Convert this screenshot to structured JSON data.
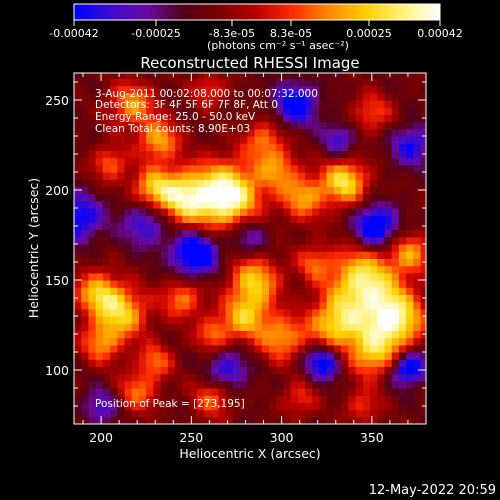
{
  "timestamp": "12-May-2022 20:59",
  "colorbar": {
    "ticks": [
      "-0.00042",
      "-0.00025",
      "-8.3e-05",
      "8.3e-05",
      "0.00025",
      "0.00042"
    ],
    "units": "(photons cm⁻² s⁻¹ asec⁻²)",
    "range": [
      -0.00042,
      0.00042
    ],
    "stops": [
      "#0000ff",
      "#3b0bd0",
      "#6a0aa0",
      "#520018",
      "#7a0000",
      "#bb0000",
      "#ff2d00",
      "#ff8c00",
      "#ffd000",
      "#fff27a",
      "#ffffff"
    ]
  },
  "chart_data": {
    "type": "heatmap",
    "title": "Reconstructed RHESSI Image",
    "xlabel": "Heliocentric X (arcsec)",
    "ylabel": "Heliocentric Y (arcsec)",
    "xlim": [
      185,
      380
    ],
    "ylim": [
      70,
      265
    ],
    "xticks": [
      200,
      250,
      300,
      350
    ],
    "yticks": [
      100,
      150,
      200,
      250
    ],
    "annotations": [
      "3-Aug-2011 00:02:08.000 to 00:07:32.000",
      "Detectors: 3F 4F 5F 6F 7F 8F, Att 0",
      "Energy Range: 25.0 - 50.0 keV",
      "Clean     Total counts: 8.90E+03"
    ],
    "peak_label": "Position of Peak = [273,195]",
    "peak": [
      273,
      195
    ],
    "blobs": [
      {
        "x": 270,
        "y": 197,
        "r": 13,
        "v": 1.0
      },
      {
        "x": 245,
        "y": 196,
        "r": 11,
        "v": 0.75
      },
      {
        "x": 228,
        "y": 201,
        "r": 8,
        "v": 0.55
      },
      {
        "x": 335,
        "y": 205,
        "r": 9,
        "v": 0.75
      },
      {
        "x": 312,
        "y": 196,
        "r": 9,
        "v": 0.55
      },
      {
        "x": 290,
        "y": 228,
        "r": 8,
        "v": 0.45
      },
      {
        "x": 298,
        "y": 212,
        "r": 8,
        "v": 0.45
      },
      {
        "x": 217,
        "y": 248,
        "r": 9,
        "v": 0.55
      },
      {
        "x": 232,
        "y": 228,
        "r": 8,
        "v": 0.6
      },
      {
        "x": 205,
        "y": 215,
        "r": 7,
        "v": 0.45
      },
      {
        "x": 260,
        "y": 256,
        "r": 7,
        "v": 0.35
      },
      {
        "x": 350,
        "y": 243,
        "r": 8,
        "v": 0.4
      },
      {
        "x": 285,
        "y": 150,
        "r": 10,
        "v": 0.65
      },
      {
        "x": 280,
        "y": 130,
        "r": 9,
        "v": 0.6
      },
      {
        "x": 300,
        "y": 118,
        "r": 9,
        "v": 0.55
      },
      {
        "x": 345,
        "y": 150,
        "r": 13,
        "v": 0.8
      },
      {
        "x": 362,
        "y": 128,
        "r": 12,
        "v": 0.9
      },
      {
        "x": 330,
        "y": 125,
        "r": 11,
        "v": 0.7
      },
      {
        "x": 350,
        "y": 108,
        "r": 9,
        "v": 0.55
      },
      {
        "x": 372,
        "y": 165,
        "r": 8,
        "v": 0.5
      },
      {
        "x": 198,
        "y": 143,
        "r": 9,
        "v": 0.6
      },
      {
        "x": 212,
        "y": 132,
        "r": 10,
        "v": 0.65
      },
      {
        "x": 200,
        "y": 115,
        "r": 8,
        "v": 0.5
      },
      {
        "x": 245,
        "y": 140,
        "r": 8,
        "v": 0.5
      },
      {
        "x": 262,
        "y": 120,
        "r": 7,
        "v": 0.45
      },
      {
        "x": 230,
        "y": 105,
        "r": 7,
        "v": 0.45
      },
      {
        "x": 318,
        "y": 160,
        "r": 7,
        "v": 0.4
      },
      {
        "x": 220,
        "y": 88,
        "r": 8,
        "v": 0.45
      },
      {
        "x": 262,
        "y": 85,
        "r": 8,
        "v": 0.45
      },
      {
        "x": 310,
        "y": 84,
        "r": 7,
        "v": 0.35
      },
      {
        "x": 345,
        "y": 80,
        "r": 7,
        "v": 0.35
      },
      {
        "x": 375,
        "y": 95,
        "r": 6,
        "v": 0.3
      },
      {
        "x": 252,
        "y": 165,
        "r": 9,
        "v": -0.8
      },
      {
        "x": 352,
        "y": 180,
        "r": 8,
        "v": -0.8
      },
      {
        "x": 323,
        "y": 105,
        "r": 7,
        "v": -0.7
      },
      {
        "x": 372,
        "y": 100,
        "r": 7,
        "v": -0.9
      },
      {
        "x": 308,
        "y": 248,
        "r": 8,
        "v": -0.7
      },
      {
        "x": 188,
        "y": 185,
        "r": 9,
        "v": -0.6
      },
      {
        "x": 225,
        "y": 182,
        "r": 9,
        "v": -0.5
      },
      {
        "x": 270,
        "y": 100,
        "r": 8,
        "v": -0.5
      },
      {
        "x": 372,
        "y": 225,
        "r": 8,
        "v": -0.5
      },
      {
        "x": 282,
        "y": 175,
        "r": 8,
        "v": -0.4
      },
      {
        "x": 200,
        "y": 80,
        "r": 7,
        "v": -0.4
      },
      {
        "x": 332,
        "y": 228,
        "r": 7,
        "v": -0.4
      }
    ],
    "background": -0.28
  }
}
